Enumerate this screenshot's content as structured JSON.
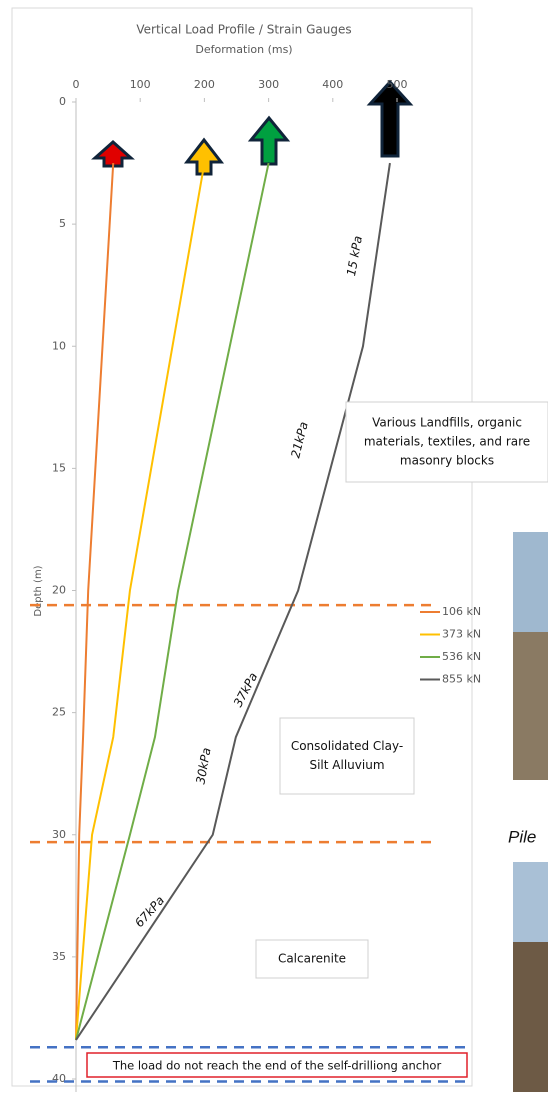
{
  "chart_data": {
    "type": "line",
    "title": "Vertical Load Profile / Strain Gauges",
    "x_label": "Deformation (ms)",
    "y_label": "Depth (m)",
    "xlim": [
      0,
      500
    ],
    "xticks": [
      0,
      100,
      200,
      300,
      400,
      500
    ],
    "ylim": [
      0,
      40
    ],
    "yticks": [
      0,
      5,
      10,
      15,
      20,
      25,
      30,
      35,
      40
    ],
    "y_inverted": true,
    "series": [
      {
        "name": "106 kN",
        "color": "#ed7d31",
        "deformation": [
          58,
          19,
          11,
          5,
          0
        ],
        "depth": [
          2.5,
          20,
          26,
          30,
          38.4
        ]
      },
      {
        "name": "373 kN",
        "color": "#ffc000",
        "deformation": [
          200,
          84,
          58,
          25,
          0
        ],
        "depth": [
          2.5,
          20,
          26,
          30,
          38.4
        ]
      },
      {
        "name": "536 kN",
        "color": "#70ad47",
        "deformation": [
          300,
          159,
          123,
          84,
          0
        ],
        "depth": [
          2.5,
          20,
          26,
          30,
          38.4
        ]
      },
      {
        "name": "855 kN",
        "color": "#595959",
        "deformation": [
          489,
          447,
          346,
          249,
          213,
          0
        ],
        "depth": [
          2.5,
          10,
          20,
          26,
          30,
          38.4
        ]
      }
    ],
    "reference_lines": [
      {
        "depth": 20.6,
        "color": "#ed7d31"
      },
      {
        "depth": 30.3,
        "color": "#ed7d31"
      },
      {
        "depth": 38.7,
        "color": "#4472c4"
      },
      {
        "depth": 40.1,
        "color": "#4472c4"
      }
    ],
    "segment_labels": [
      "15 kPa",
      "21kPa",
      "37kPa",
      "30kPa",
      "67kPa"
    ],
    "layer_labels": [
      [
        "Various Landfills, organic",
        "materials, textiles, and rare",
        "masonry blocks"
      ],
      [
        "Consolidated Clay-",
        "Silt Alluvium"
      ],
      [
        "Calcarenite"
      ]
    ],
    "note": "The load do not reach the end of the self-drilliong anchor"
  },
  "caption": "Pile"
}
